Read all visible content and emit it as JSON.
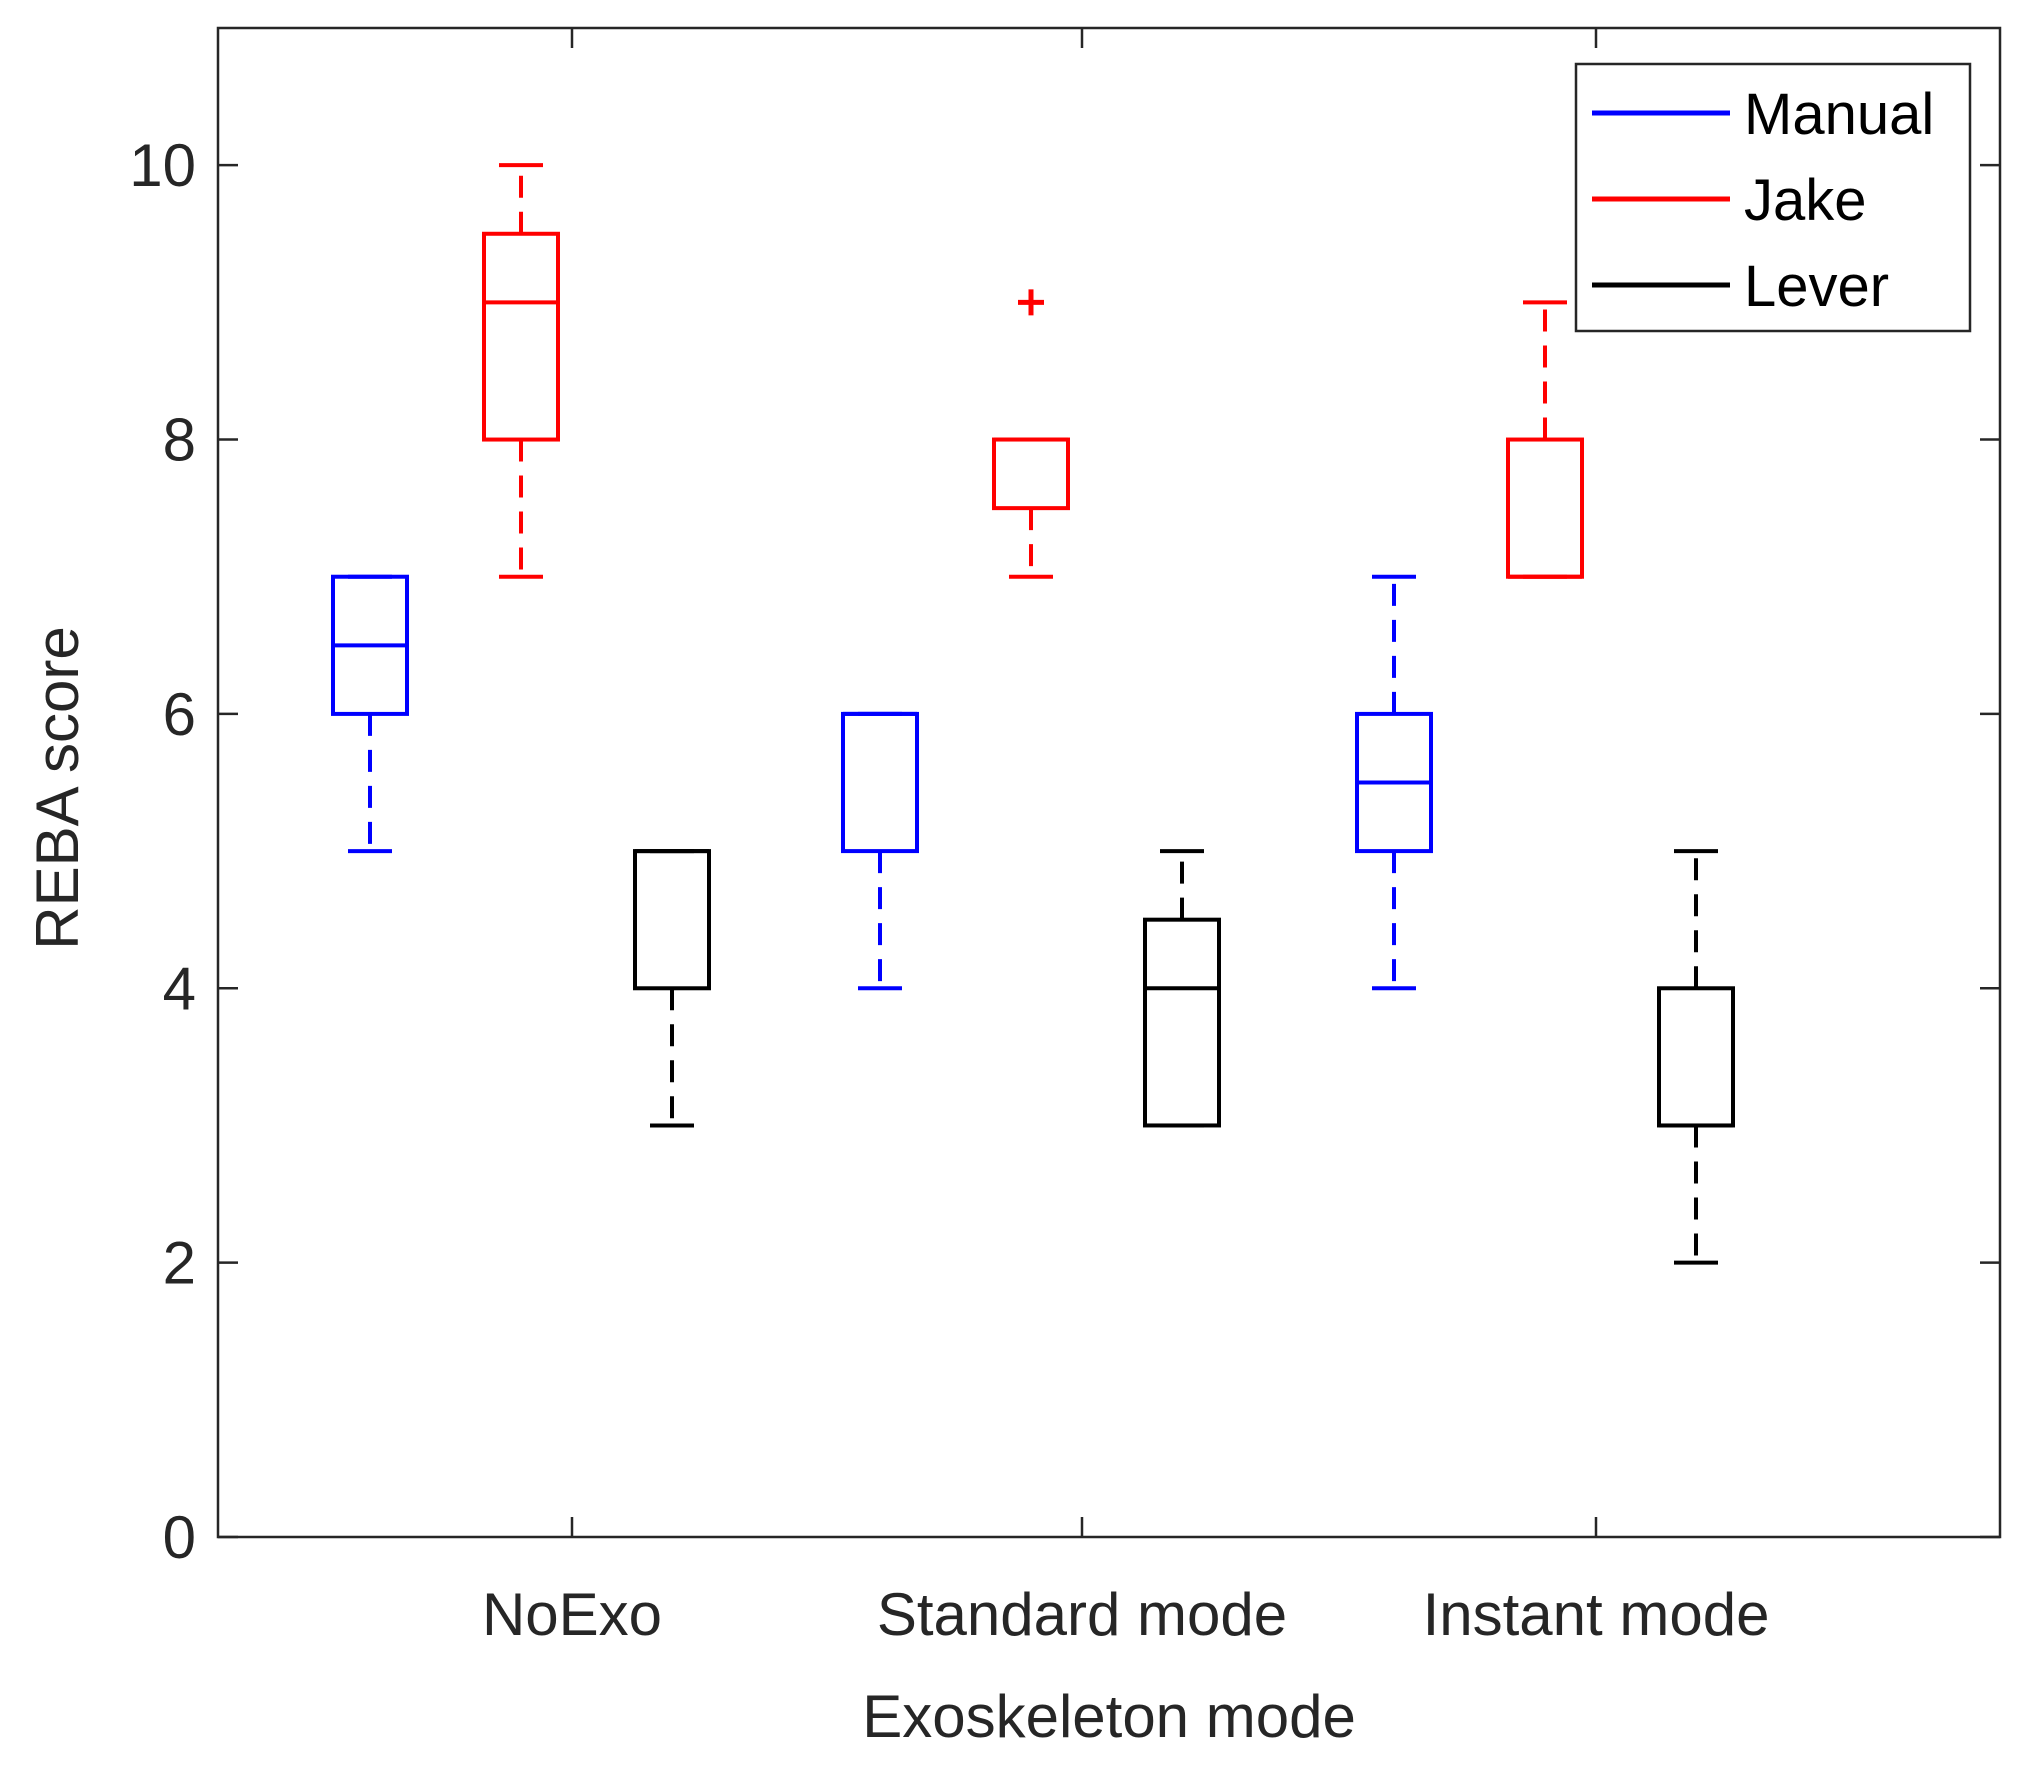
{
  "chart_data": {
    "type": "boxplot",
    "title": "",
    "xlabel": "Exoskeleton mode",
    "ylabel": "REBA score",
    "ylim": [
      0,
      11
    ],
    "yticks": [
      "0",
      "2",
      "4",
      "6",
      "8",
      "10"
    ],
    "yticks_values": [
      0,
      2,
      4,
      6,
      8,
      10
    ],
    "categories": [
      "NoExo",
      "Standard mode",
      "Instant mode"
    ],
    "legend_position": "top-right",
    "series": [
      {
        "name": "Manual",
        "color": "#0000ff",
        "boxes": [
          {
            "whisker_low": 5,
            "q1": 6,
            "median": 6.5,
            "q3": 7,
            "whisker_high": 7,
            "outliers": []
          },
          {
            "whisker_low": 4,
            "q1": 5,
            "median": 6,
            "q3": 6,
            "whisker_high": 6,
            "outliers": []
          },
          {
            "whisker_low": 4,
            "q1": 5,
            "median": 5.5,
            "q3": 6,
            "whisker_high": 7,
            "outliers": []
          }
        ]
      },
      {
        "name": "Jake",
        "color": "#ff0000",
        "boxes": [
          {
            "whisker_low": 7,
            "q1": 8,
            "median": 9,
            "q3": 9.5,
            "whisker_high": 10,
            "outliers": []
          },
          {
            "whisker_low": 7,
            "q1": 7.5,
            "median": 8,
            "q3": 8,
            "whisker_high": 8,
            "outliers": [
              9
            ]
          },
          {
            "whisker_low": 7,
            "q1": 7,
            "median": 7,
            "q3": 8,
            "whisker_high": 9,
            "outliers": []
          }
        ]
      },
      {
        "name": "Lever",
        "color": "#000000",
        "boxes": [
          {
            "whisker_low": 3,
            "q1": 4,
            "median": 5,
            "q3": 5,
            "whisker_high": 5,
            "outliers": []
          },
          {
            "whisker_low": 3,
            "q1": 3,
            "median": 4,
            "q3": 4.5,
            "whisker_high": 5,
            "outliers": []
          },
          {
            "whisker_low": 2,
            "q1": 3,
            "median": 3,
            "q3": 4,
            "whisker_high": 5,
            "outliers": []
          }
        ]
      }
    ]
  }
}
